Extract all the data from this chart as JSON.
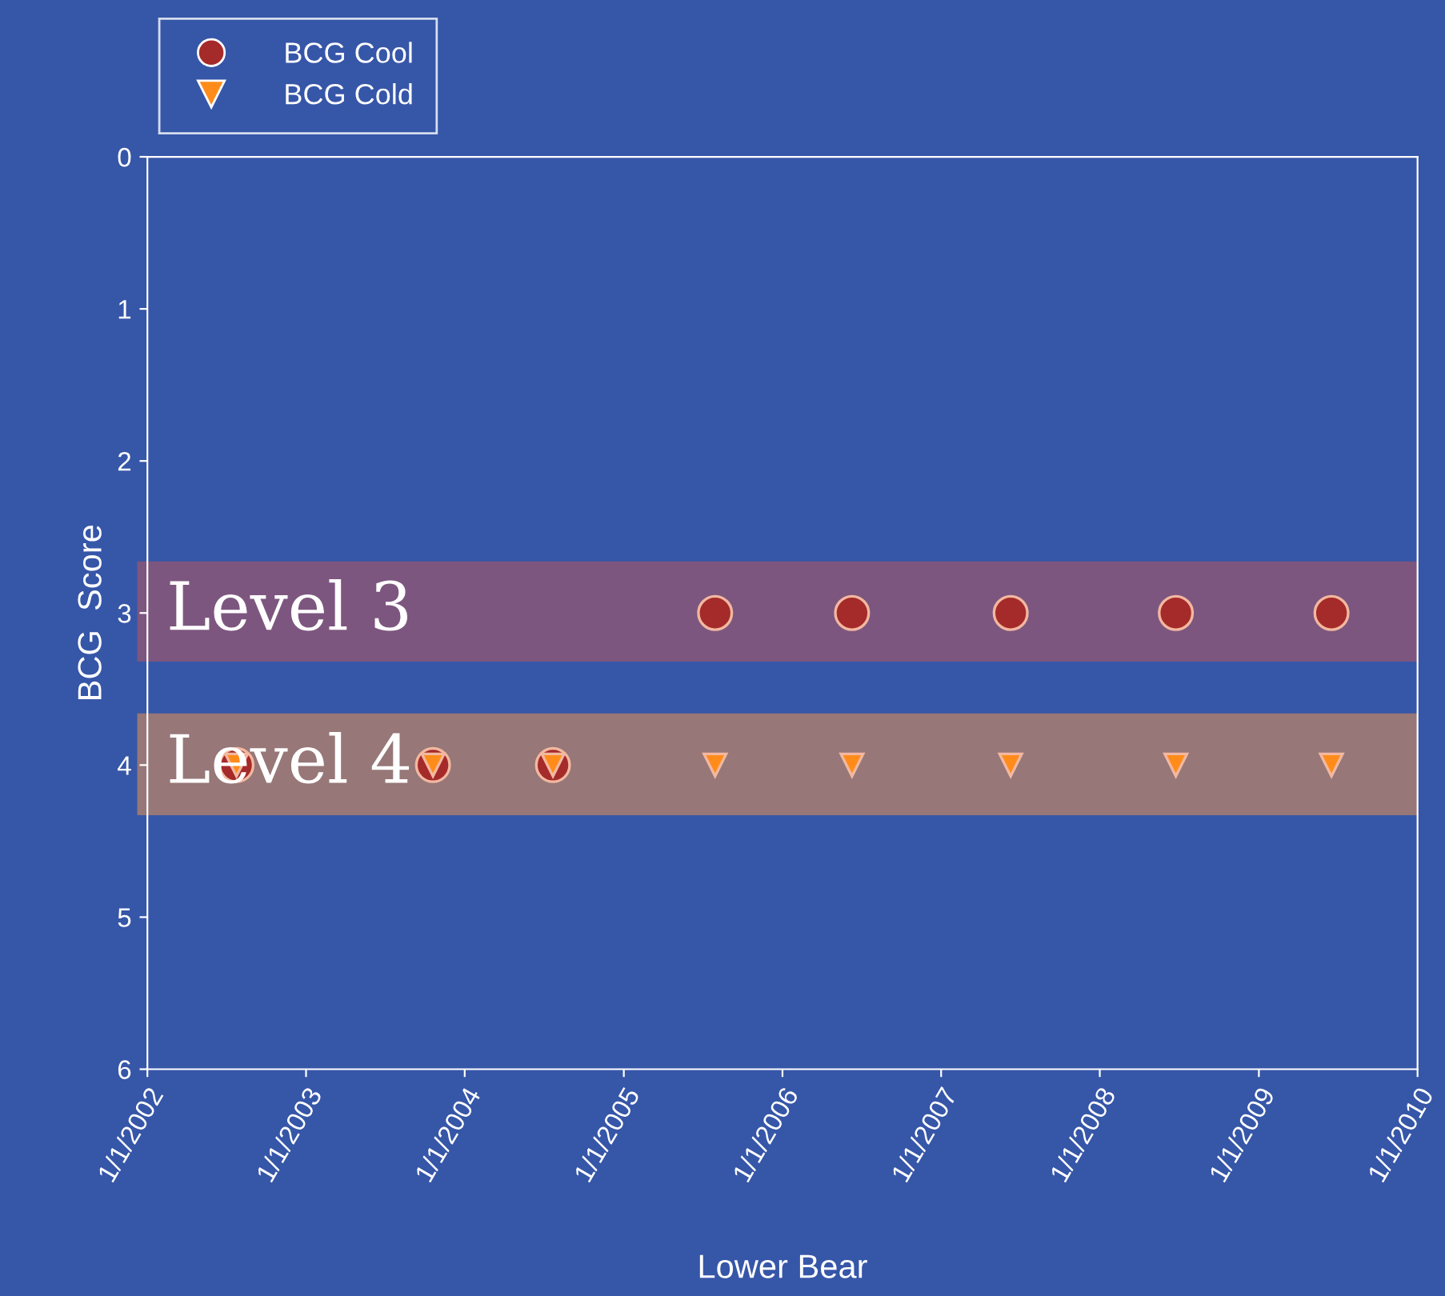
{
  "chart_data": {
    "type": "scatter",
    "xlabel": "Lower Bear",
    "ylabel": "BCG  Score",
    "xlim": [
      "2002-01-01",
      "2010-01-01"
    ],
    "xticks": [
      {
        "value": "2002-01-01",
        "label": "1/1/2002"
      },
      {
        "value": "2003-01-01",
        "label": "1/1/2003"
      },
      {
        "value": "2004-01-01",
        "label": "1/1/2004"
      },
      {
        "value": "2005-01-01",
        "label": "1/1/2005"
      },
      {
        "value": "2006-01-01",
        "label": "1/1/2006"
      },
      {
        "value": "2007-01-01",
        "label": "1/1/2007"
      },
      {
        "value": "2008-01-01",
        "label": "1/1/2008"
      },
      {
        "value": "2009-01-01",
        "label": "1/1/2009"
      },
      {
        "value": "2010-01-01",
        "label": "1/1/2010"
      }
    ],
    "ylim": [
      6,
      0
    ],
    "yticks": [
      0,
      1,
      2,
      3,
      4,
      5,
      6
    ],
    "grid": false,
    "legend": "top left",
    "x": [
      "2002-07-25",
      "2003-10-20",
      "2004-07-22",
      "2005-07-30",
      "2006-06-10",
      "2007-06-10",
      "2008-06-24",
      "2009-06-17"
    ],
    "series": [
      {
        "name": "BCG Cool",
        "color": "#a52a2a",
        "marker": "circle",
        "values": [
          4,
          4,
          4,
          3,
          3,
          3,
          3,
          3
        ]
      },
      {
        "name": "BCG Cold",
        "color": "#ff8c1a",
        "marker": "triangle",
        "values": [
          4,
          4,
          4,
          4,
          4,
          4,
          4,
          4
        ]
      }
    ],
    "bands": [
      {
        "axis": "y",
        "from": 2.66,
        "to": 3.32,
        "label": "Level 3",
        "color": "#85577a"
      },
      {
        "axis": "y",
        "from": 3.66,
        "to": 4.33,
        "label": "Level 4",
        "color": "#a27b72"
      }
    ]
  }
}
